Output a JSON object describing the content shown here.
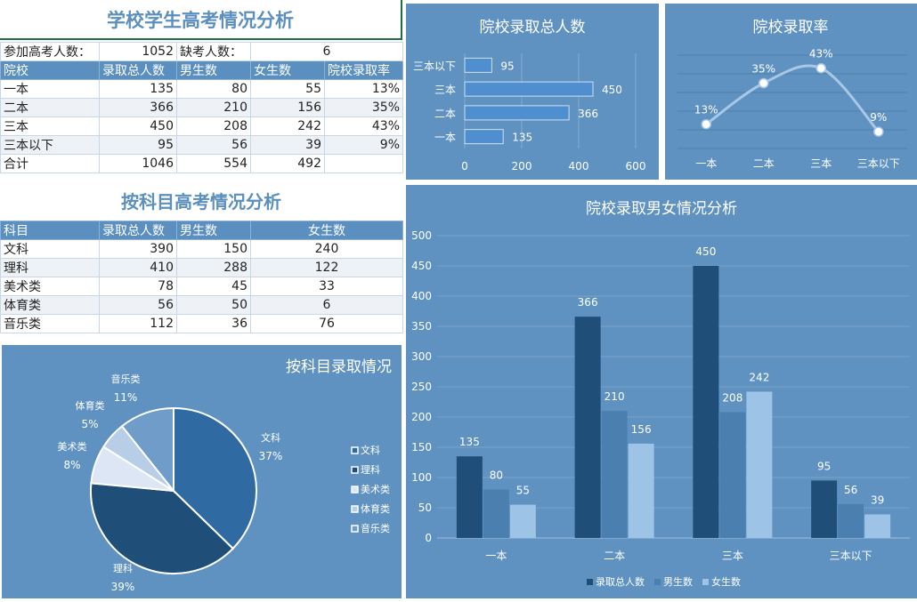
{
  "school_section": {
    "title": "学校学生高考情况分析",
    "exam_takers_label": "参加高考人数：",
    "exam_takers_value": "1052",
    "absent_label": "缺考人数：",
    "absent_value": "6",
    "headers": [
      "院校",
      "录取总人数",
      "男生数",
      "女生数",
      "院校录取率"
    ],
    "rows": [
      [
        "一本",
        "135",
        "80",
        "55",
        "13%"
      ],
      [
        "二本",
        "366",
        "210",
        "156",
        "35%"
      ],
      [
        "三本",
        "450",
        "208",
        "242",
        "43%"
      ],
      [
        "三本以下",
        "95",
        "56",
        "39",
        "9%"
      ],
      [
        "合计",
        "1046",
        "554",
        "492",
        ""
      ]
    ]
  },
  "subject_section": {
    "title": "按科目高考情况分析",
    "headers": [
      "科目",
      "录取总人数",
      "男生数",
      "女生数"
    ],
    "rows": [
      [
        "文科",
        "390",
        "150",
        "240"
      ],
      [
        "理科",
        "410",
        "288",
        "122"
      ],
      [
        "美术类",
        "78",
        "45",
        "33"
      ],
      [
        "体育类",
        "56",
        "50",
        "6"
      ],
      [
        "音乐类",
        "112",
        "36",
        "76"
      ]
    ]
  },
  "colors": {
    "panel": "#5f92c0",
    "total": "#1f4e79",
    "male": "#4a7fb0",
    "female": "#9dc3e6",
    "hbar": "#4f8fd0"
  },
  "chart_data": [
    {
      "id": "total",
      "type": "bar",
      "orientation": "horizontal",
      "title": "院校录取总人数",
      "categories": [
        "一本",
        "二本",
        "三本",
        "三本以下"
      ],
      "values": [
        135,
        366,
        450,
        95
      ],
      "xlim": [
        0,
        600
      ],
      "xticks": [
        "0",
        "200",
        "400",
        "600"
      ],
      "grid": true
    },
    {
      "id": "rate",
      "type": "line",
      "title": "院校录取率",
      "categories": [
        "一本",
        "二本",
        "三本",
        "三本以下"
      ],
      "values": [
        13,
        35,
        43,
        9
      ],
      "labels": [
        "13%",
        "35%",
        "43%",
        "9%"
      ],
      "ylim": [
        0,
        50
      ]
    },
    {
      "id": "gender",
      "type": "bar",
      "title": "院校录取男女情况分析",
      "categories": [
        "一本",
        "二本",
        "三本",
        "三本以下"
      ],
      "series": [
        {
          "name": "录取总人数",
          "values": [
            135,
            366,
            450,
            95
          ]
        },
        {
          "name": "男生数",
          "values": [
            80,
            210,
            208,
            56
          ]
        },
        {
          "name": "女生数",
          "values": [
            55,
            156,
            242,
            39
          ]
        }
      ],
      "ylim": [
        0,
        500
      ],
      "yticks": [
        "0",
        "50",
        "100",
        "150",
        "200",
        "250",
        "300",
        "350",
        "400",
        "450",
        "500"
      ],
      "legend": "bottom",
      "grid": true
    },
    {
      "id": "subject",
      "type": "pie",
      "title": "按科目录取情况",
      "categories": [
        "文科",
        "理科",
        "美术类",
        "体育类",
        "音乐类"
      ],
      "values": [
        390,
        410,
        78,
        56,
        112
      ],
      "labels": [
        "37%",
        "39%",
        "8%",
        "5%",
        "11%"
      ],
      "legend": "right"
    }
  ]
}
